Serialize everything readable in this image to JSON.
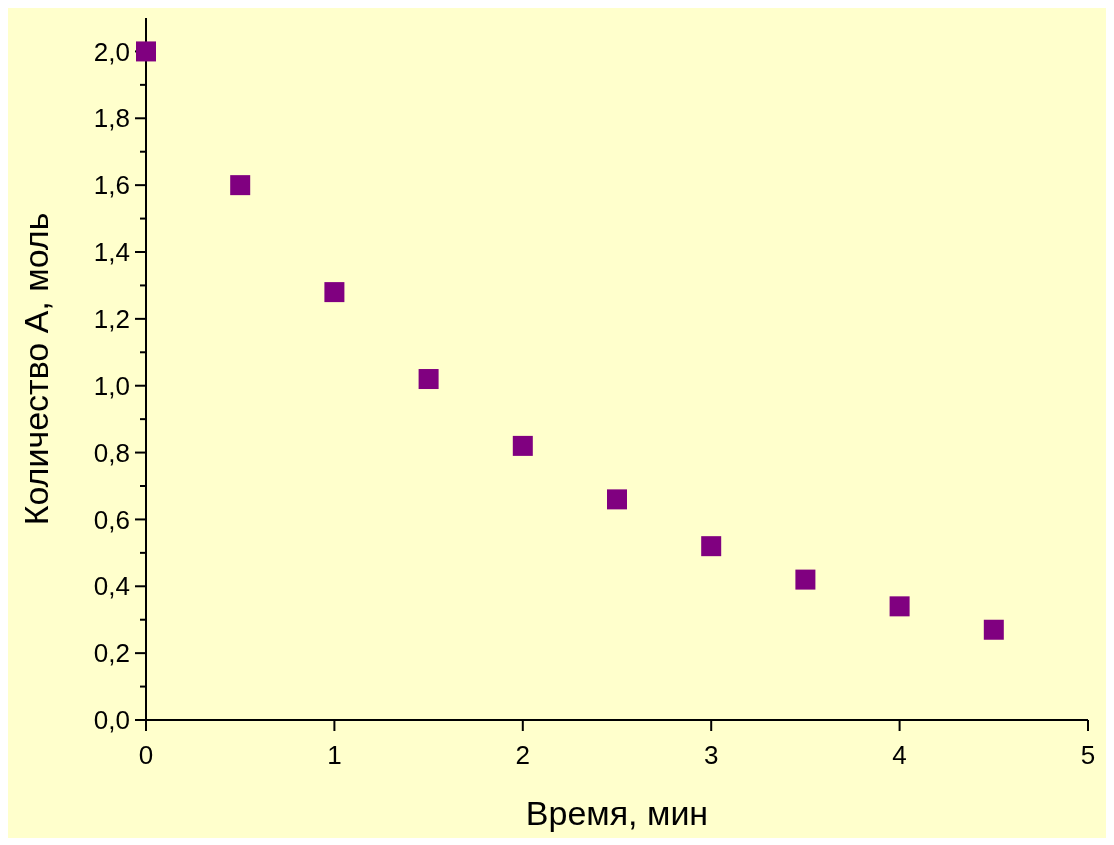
{
  "chart_data": {
    "type": "scatter",
    "xlabel": "Время, мин",
    "ylabel": "Количество А, моль",
    "x": [
      0,
      0.5,
      1,
      1.5,
      2,
      2.5,
      3,
      3.5,
      4,
      4.5
    ],
    "series": [
      {
        "color": "#800080",
        "values": [
          2.0,
          1.6,
          1.28,
          1.02,
          0.82,
          0.66,
          0.52,
          0.42,
          0.34,
          0.27
        ]
      }
    ],
    "marker": "square",
    "grid": false,
    "xlim": [
      0,
      5
    ],
    "xticks": [
      0,
      1,
      2,
      3,
      4,
      5
    ],
    "ylim": [
      0,
      2.1
    ],
    "yticks": [
      {
        "value": 0,
        "label": "0,0"
      },
      {
        "value": 0.1,
        "label": null
      },
      {
        "value": 0.2,
        "label": "0,2"
      },
      {
        "value": 0.3,
        "label": null
      },
      {
        "value": 0.4,
        "label": "0,4"
      },
      {
        "value": 0.5,
        "label": null
      },
      {
        "value": 0.6,
        "label": "0,6"
      },
      {
        "value": 0.7,
        "label": null
      },
      {
        "value": 0.8,
        "label": "0,8"
      },
      {
        "value": 0.9,
        "label": null
      },
      {
        "value": 1.0,
        "label": "1,0"
      },
      {
        "value": 1.1,
        "label": null
      },
      {
        "value": 1.2,
        "label": "1,2"
      },
      {
        "value": 1.3,
        "label": null
      },
      {
        "value": 1.4,
        "label": "1,4"
      },
      {
        "value": 1.5,
        "label": null
      },
      {
        "value": 1.6,
        "label": "1,6"
      },
      {
        "value": 1.7,
        "label": null
      },
      {
        "value": 1.8,
        "label": "1,8"
      },
      {
        "value": 1.9,
        "label": null
      },
      {
        "value": 2.0,
        "label": "2,0"
      }
    ]
  }
}
